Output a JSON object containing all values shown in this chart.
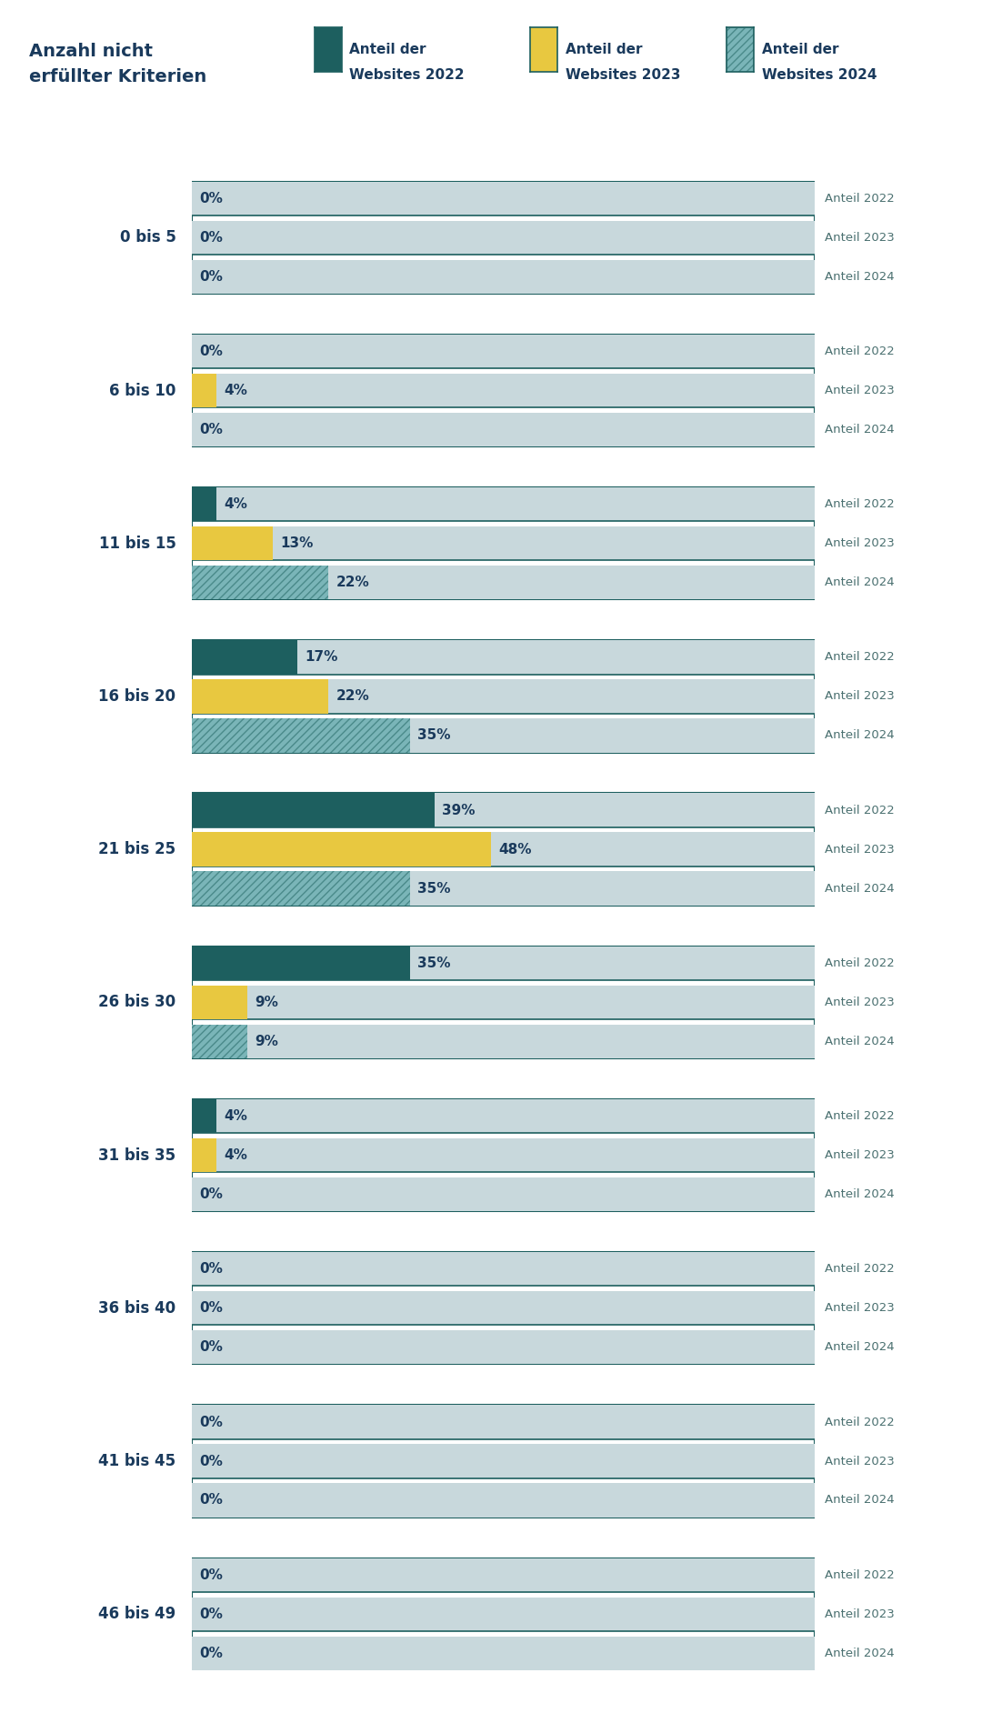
{
  "categories": [
    "0 bis 5",
    "6 bis 10",
    "11 bis 15",
    "16 bis 20",
    "21 bis 25",
    "26 bis 30",
    "31 bis 35",
    "36 bis 40",
    "41 bis 45",
    "46 bis 49"
  ],
  "data": {
    "0 bis 5": {
      "2022": 0,
      "2023": 0,
      "2024": 0
    },
    "6 bis 10": {
      "2022": 0,
      "2023": 4,
      "2024": 0
    },
    "11 bis 15": {
      "2022": 4,
      "2023": 13,
      "2024": 22
    },
    "16 bis 20": {
      "2022": 17,
      "2023": 22,
      "2024": 35
    },
    "21 bis 25": {
      "2022": 39,
      "2023": 48,
      "2024": 35
    },
    "26 bis 30": {
      "2022": 35,
      "2023": 9,
      "2024": 9
    },
    "31 bis 35": {
      "2022": 4,
      "2023": 4,
      "2024": 0
    },
    "36 bis 40": {
      "2022": 0,
      "2023": 0,
      "2024": 0
    },
    "41 bis 45": {
      "2022": 0,
      "2023": 0,
      "2024": 0
    },
    "46 bis 49": {
      "2022": 0,
      "2023": 0,
      "2024": 0
    }
  },
  "bar_color_2022": "#1d5f5f",
  "bar_color_2023": "#e8c840",
  "bar_color_2024_face": "#7ab5b8",
  "bar_color_2024_hatch": "#4a8a8a",
  "bg_bar_color": "#c8d8dc",
  "bar_border_color": "#1d5f5f",
  "text_color": "#1a3a5c",
  "anteil_label_color": "#4a7070",
  "figure_bg": "#ffffff",
  "xlim": 100,
  "title_line1": "Anzahl nicht",
  "title_line2": "erfüllter Kriterien",
  "legend_items": [
    {
      "label_line1": "Anteil der",
      "label_line2": "Websites 2022",
      "color": "#1d5f5f",
      "hatch": null
    },
    {
      "label_line1": "Anteil der",
      "label_line2": "Websites 2023",
      "color": "#e8c840",
      "hatch": null
    },
    {
      "label_line1": "Anteil der",
      "label_line2": "Websites 2024",
      "color": "#7ab5b8",
      "hatch": "////"
    }
  ]
}
